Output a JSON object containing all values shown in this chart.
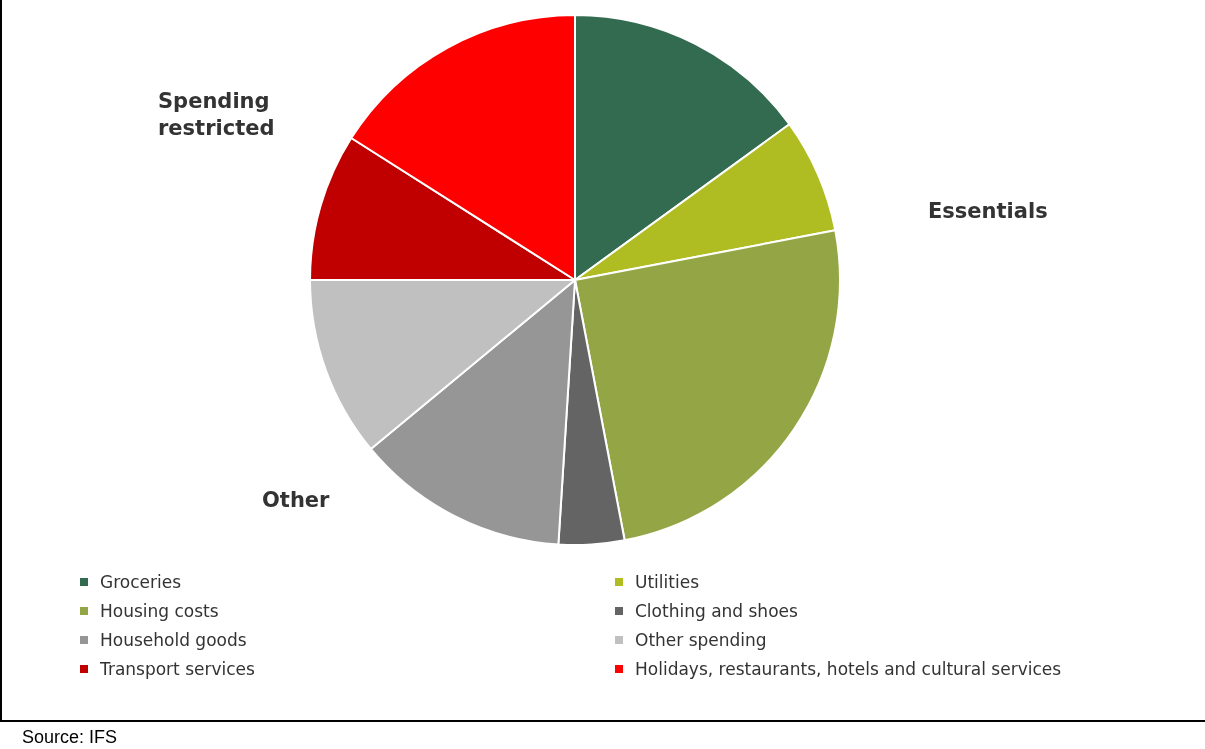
{
  "chart_data": {
    "type": "pie",
    "categories": [
      "Groceries",
      "Utilities",
      "Housing costs",
      "Clothing and shoes",
      "Household goods",
      "Other spending",
      "Transport services",
      "Holidays, restaurants, hotels and cultural services"
    ],
    "values": [
      15,
      7,
      25,
      4,
      13,
      11,
      9,
      16
    ],
    "colors": [
      "#336b50",
      "#afbd22",
      "#94a545",
      "#646464",
      "#969696",
      "#c0c0c0",
      "#c00000",
      "#ff0000"
    ],
    "legend": "bottom",
    "annotations": [
      "Essentials",
      "Spending restricted",
      "Other",
      "Source: IFS"
    ]
  }
}
